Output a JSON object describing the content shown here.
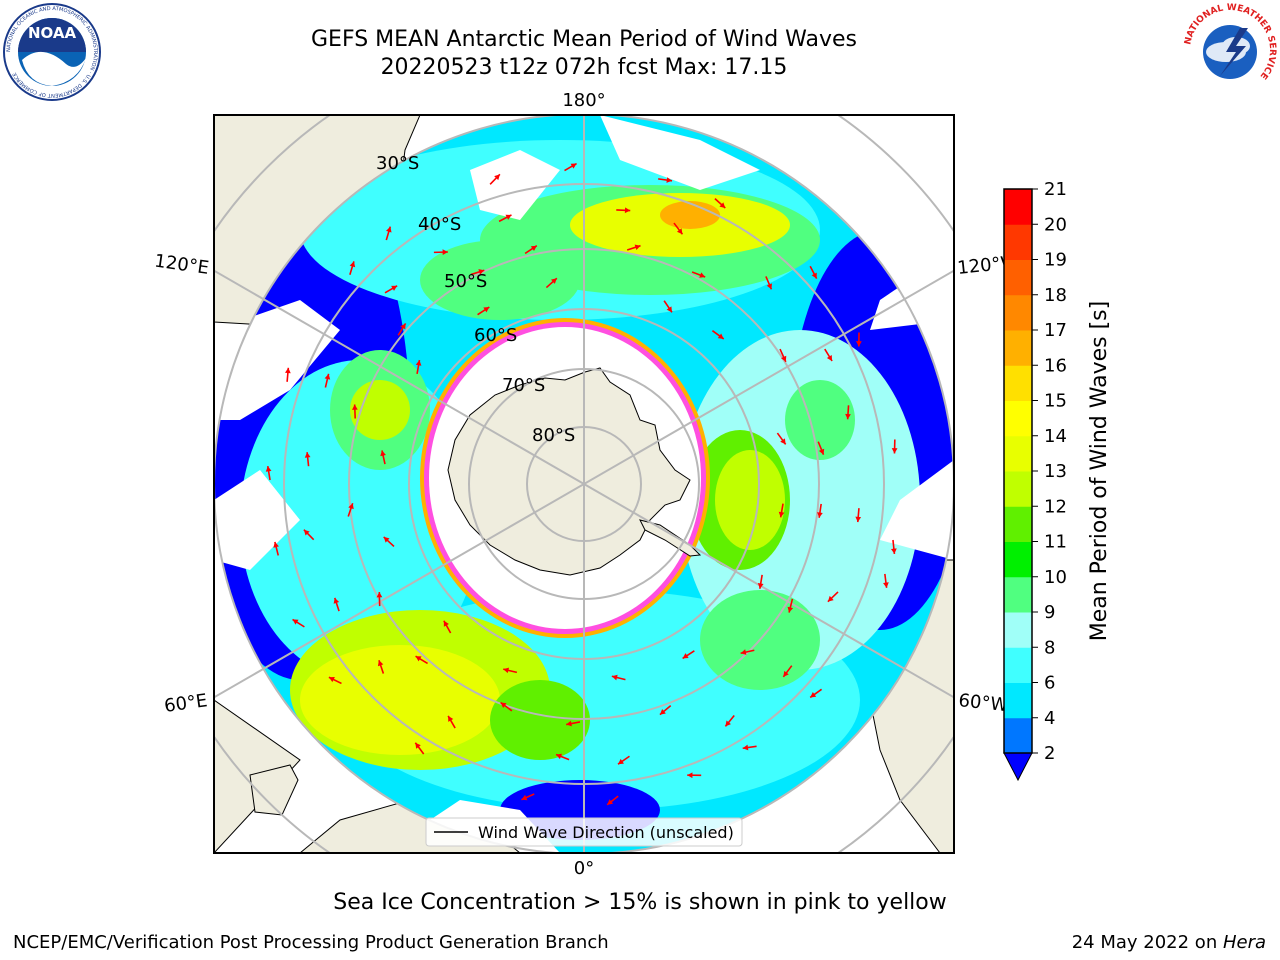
{
  "header": {
    "title_line1": "GEFS MEAN Antarctic Mean Period of Wind Waves",
    "title_line2": "20220523 t12z 072h fcst   Max: 17.15"
  },
  "logos": {
    "left": {
      "icon": "noaa-logo-icon",
      "text": "NOAA",
      "ring_text": "NATIONAL OCEANIC AND ATMOSPHERIC ADMINISTRATION · U.S. DEPARTMENT OF COMMERCE"
    },
    "right": {
      "icon": "nws-logo-icon",
      "ring_text": "NATIONAL WEATHER SERVICE"
    }
  },
  "map": {
    "projection": "south-polar-stereographic",
    "longitude_labels": {
      "top": "180°",
      "bottom": "0°",
      "upper_left": "120°E",
      "lower_left": "60°E",
      "upper_right": "120°W",
      "lower_right": "60°W"
    },
    "latitude_labels": [
      "30°S",
      "40°S",
      "50°S",
      "60°S",
      "70°S",
      "80°S"
    ],
    "legend_label": "Wind Wave Direction (unscaled)",
    "land_color": "#efedde",
    "graticule_color": "#b8b8b8",
    "arrow_color": "#ff0000",
    "ice_edge_colors": [
      "#ff4fe0",
      "#ffb000"
    ]
  },
  "colorbar": {
    "label": "Mean Period of Wind Waves [s]",
    "ticks": [
      "2",
      "4",
      "6",
      "8",
      "9",
      "10",
      "11",
      "12",
      "13",
      "14",
      "15",
      "16",
      "17",
      "18",
      "19",
      "20",
      "21"
    ],
    "colors": [
      "#0077ff",
      "#00e8ff",
      "#40ffff",
      "#a0fff8",
      "#50ff80",
      "#00f000",
      "#60f000",
      "#c0ff00",
      "#e8ff00",
      "#ffff00",
      "#ffe000",
      "#ffb000",
      "#ff8800",
      "#ff6000",
      "#ff3800",
      "#ff0000"
    ],
    "under_color": "#0000ff"
  },
  "caption": "Sea Ice Concentration > 15% is shown in pink to yellow",
  "footer": {
    "left": "NCEP/EMC/Verification Post Processing Product Generation Branch",
    "right_prefix": "24 May 2022 on ",
    "right_italic": "Hera"
  }
}
